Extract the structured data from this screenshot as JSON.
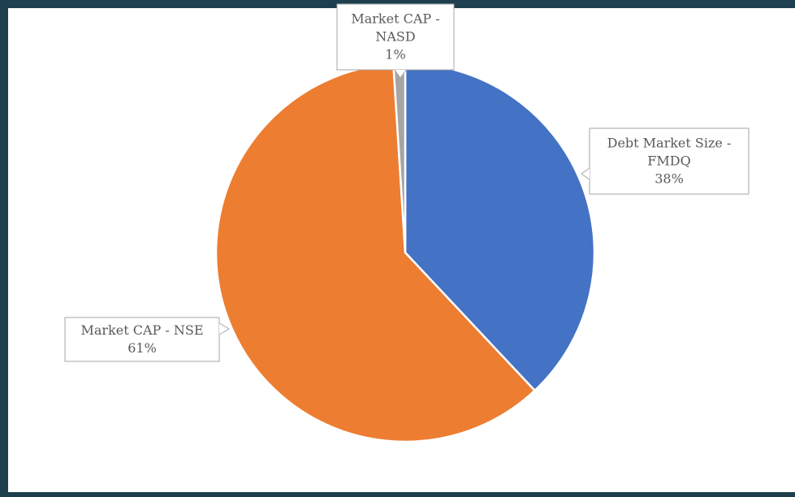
{
  "chart_data": {
    "type": "pie",
    "title": "",
    "slices": [
      {
        "name_lines": [
          "Debt Market Size -",
          "FMDQ"
        ],
        "value": 38,
        "label": "38%",
        "color": "#4472c4"
      },
      {
        "name_lines": [
          "Market CAP - NSE"
        ],
        "value": 61,
        "label": "61%",
        "color": "#ed7d31"
      },
      {
        "name_lines": [
          "Market CAP -",
          "NASD"
        ],
        "value": 1,
        "label": "1%",
        "color": "#a5a5a5"
      }
    ],
    "legend": "none",
    "data_labels": "callouts"
  }
}
